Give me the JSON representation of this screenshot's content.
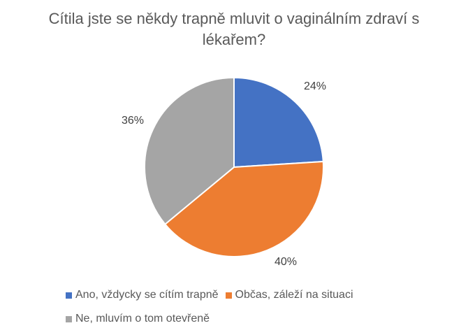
{
  "chart_data": {
    "type": "pie",
    "title": "Cítila jste se někdy trapně mluvit o vaginálním zdraví s lékařem?",
    "categories": [
      "Ano, vždycky se cítím trapně",
      "Občas, záleží na situaci",
      "Ne, mluvím o tom otevřeně"
    ],
    "values": [
      24,
      40,
      36
    ],
    "labels": [
      "24%",
      "40%",
      "36%"
    ],
    "colors": [
      "#4472C4",
      "#ED7D31",
      "#A5A5A5"
    ],
    "legend": "bottom"
  }
}
